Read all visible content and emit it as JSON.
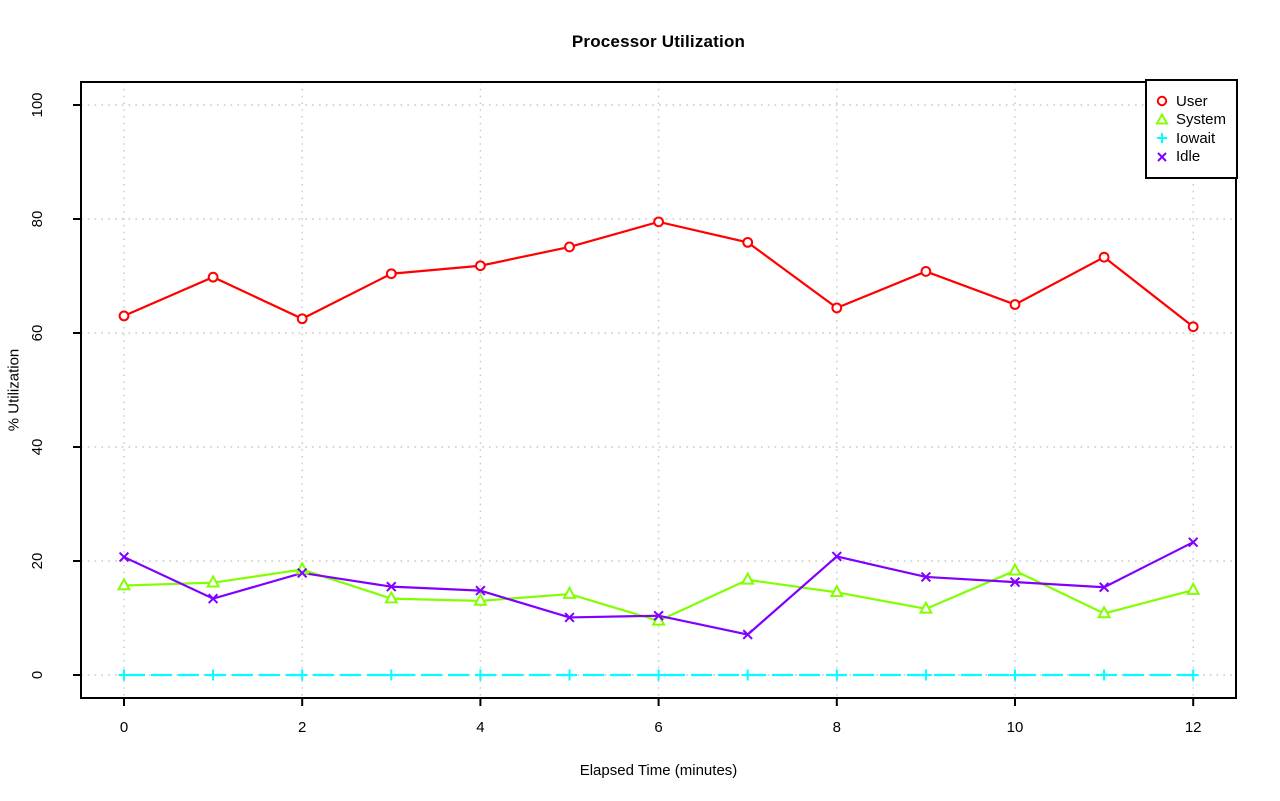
{
  "chart_data": {
    "type": "line",
    "title": "Processor Utilization",
    "xlabel": "Elapsed Time (minutes)",
    "ylabel": "% Utilization",
    "x": [
      0,
      1,
      2,
      3,
      4,
      5,
      6,
      7,
      8,
      9,
      10,
      11,
      12
    ],
    "series": [
      {
        "name": "User",
        "color": "#FF0000",
        "marker": "circle",
        "line": "solid",
        "values": [
          63.0,
          69.8,
          62.5,
          70.4,
          71.8,
          75.1,
          79.5,
          75.9,
          64.4,
          70.8,
          65.0,
          73.3,
          61.1
        ]
      },
      {
        "name": "System",
        "color": "#80FF00",
        "marker": "triangle",
        "line": "solid",
        "values": [
          15.7,
          16.2,
          18.5,
          13.4,
          13.0,
          14.2,
          9.5,
          16.7,
          14.5,
          11.6,
          18.3,
          10.8,
          14.9
        ]
      },
      {
        "name": "Iowait",
        "color": "#00FFFF",
        "marker": "plus",
        "line": "dashed",
        "values": [
          0,
          0,
          0,
          0,
          0,
          0,
          0,
          0,
          0,
          0,
          0,
          0,
          0
        ]
      },
      {
        "name": "Idle",
        "color": "#8000FF",
        "marker": "x",
        "line": "solid",
        "values": [
          20.7,
          13.4,
          17.9,
          15.5,
          14.8,
          10.1,
          10.4,
          7.1,
          20.8,
          17.2,
          16.3,
          15.4,
          23.3
        ]
      }
    ],
    "xticks": [
      0,
      2,
      4,
      6,
      8,
      10,
      12
    ],
    "yticks": [
      0,
      20,
      40,
      60,
      80,
      100
    ],
    "xtick_labels": [
      "0",
      "2",
      "4",
      "6",
      "8",
      "10",
      "12"
    ],
    "ytick_labels": [
      "0",
      "20",
      "40",
      "60",
      "80",
      "100"
    ],
    "xlim": [
      0,
      12
    ],
    "ylim": [
      0,
      100
    ],
    "grid": true,
    "grid_color": "#c9c9c9",
    "legend_position": "topright",
    "legend_labels": [
      "User",
      "System",
      "Iowait",
      "Idle"
    ]
  }
}
